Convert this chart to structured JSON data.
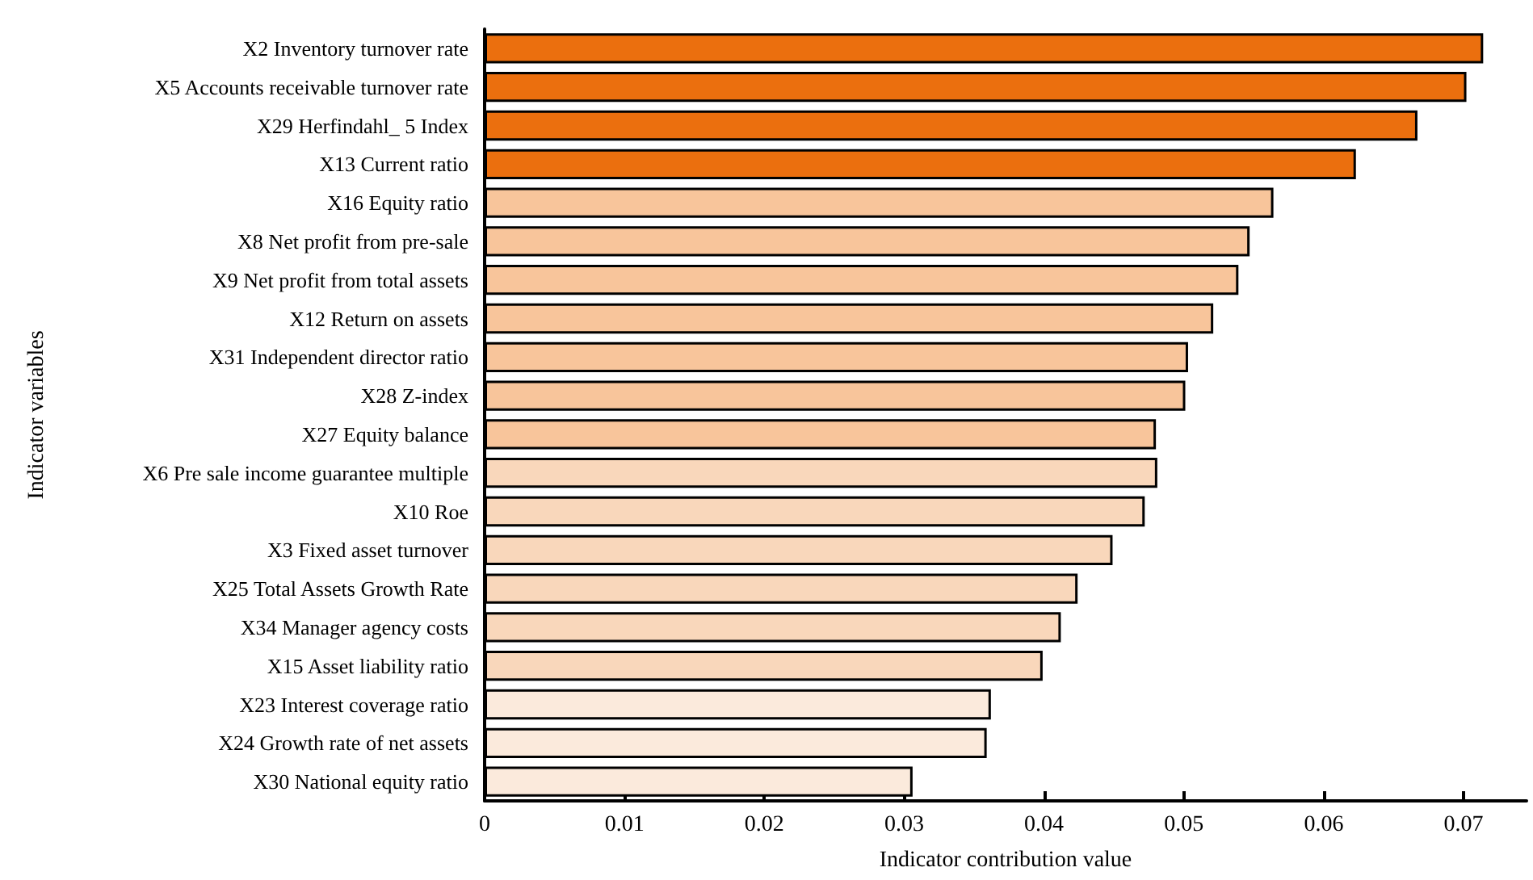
{
  "chart_data": {
    "type": "bar",
    "orientation": "horizontal",
    "xlabel": "Indicator contribution value",
    "ylabel": "Indicator variables",
    "categories": [
      "X2 Inventory turnover rate",
      "X5 Accounts receivable turnover rate",
      "X29 Herfindahl_ 5 Index",
      "X13 Current ratio",
      "X16 Equity ratio",
      "X8 Net profit from pre-sale",
      "X9 Net profit from total assets",
      "X12 Return on assets",
      "X31 Independent director ratio",
      "X28 Z-index",
      "X27 Equity balance",
      "X6 Pre sale income guarantee multiple",
      "X10 Roe",
      "X3 Fixed asset turnover",
      "X25 Total Assets Growth Rate",
      "X34 Manager agency costs",
      "X15 Asset liability ratio",
      "X23 Interest coverage ratio",
      "X24 Growth rate of net assets",
      "X30 National equity ratio"
    ],
    "values": [
      0.0714,
      0.0702,
      0.0667,
      0.0623,
      0.0564,
      0.0547,
      0.0539,
      0.0521,
      0.0503,
      0.0501,
      0.048,
      0.0481,
      0.0472,
      0.0449,
      0.0424,
      0.0412,
      0.0399,
      0.0362,
      0.0359,
      0.0306
    ],
    "colors": [
      "#eb6f0e",
      "#eb6f0e",
      "#eb6f0e",
      "#eb6f0e",
      "#f8c59b",
      "#f8c59b",
      "#f8c59b",
      "#f8c59b",
      "#f8c59b",
      "#f8c59b",
      "#f8c59b",
      "#f9d7bb",
      "#f9d7bb",
      "#f9d7bb",
      "#f9d7bb",
      "#f9d7bb",
      "#f9d7bb",
      "#fbeadc",
      "#fbeadc",
      "#fbeadc"
    ],
    "xlim": [
      0,
      0.0745
    ],
    "xticks": [
      0,
      0.01,
      0.02,
      0.03,
      0.04,
      0.05,
      0.06,
      0.07
    ],
    "grid": false
  }
}
